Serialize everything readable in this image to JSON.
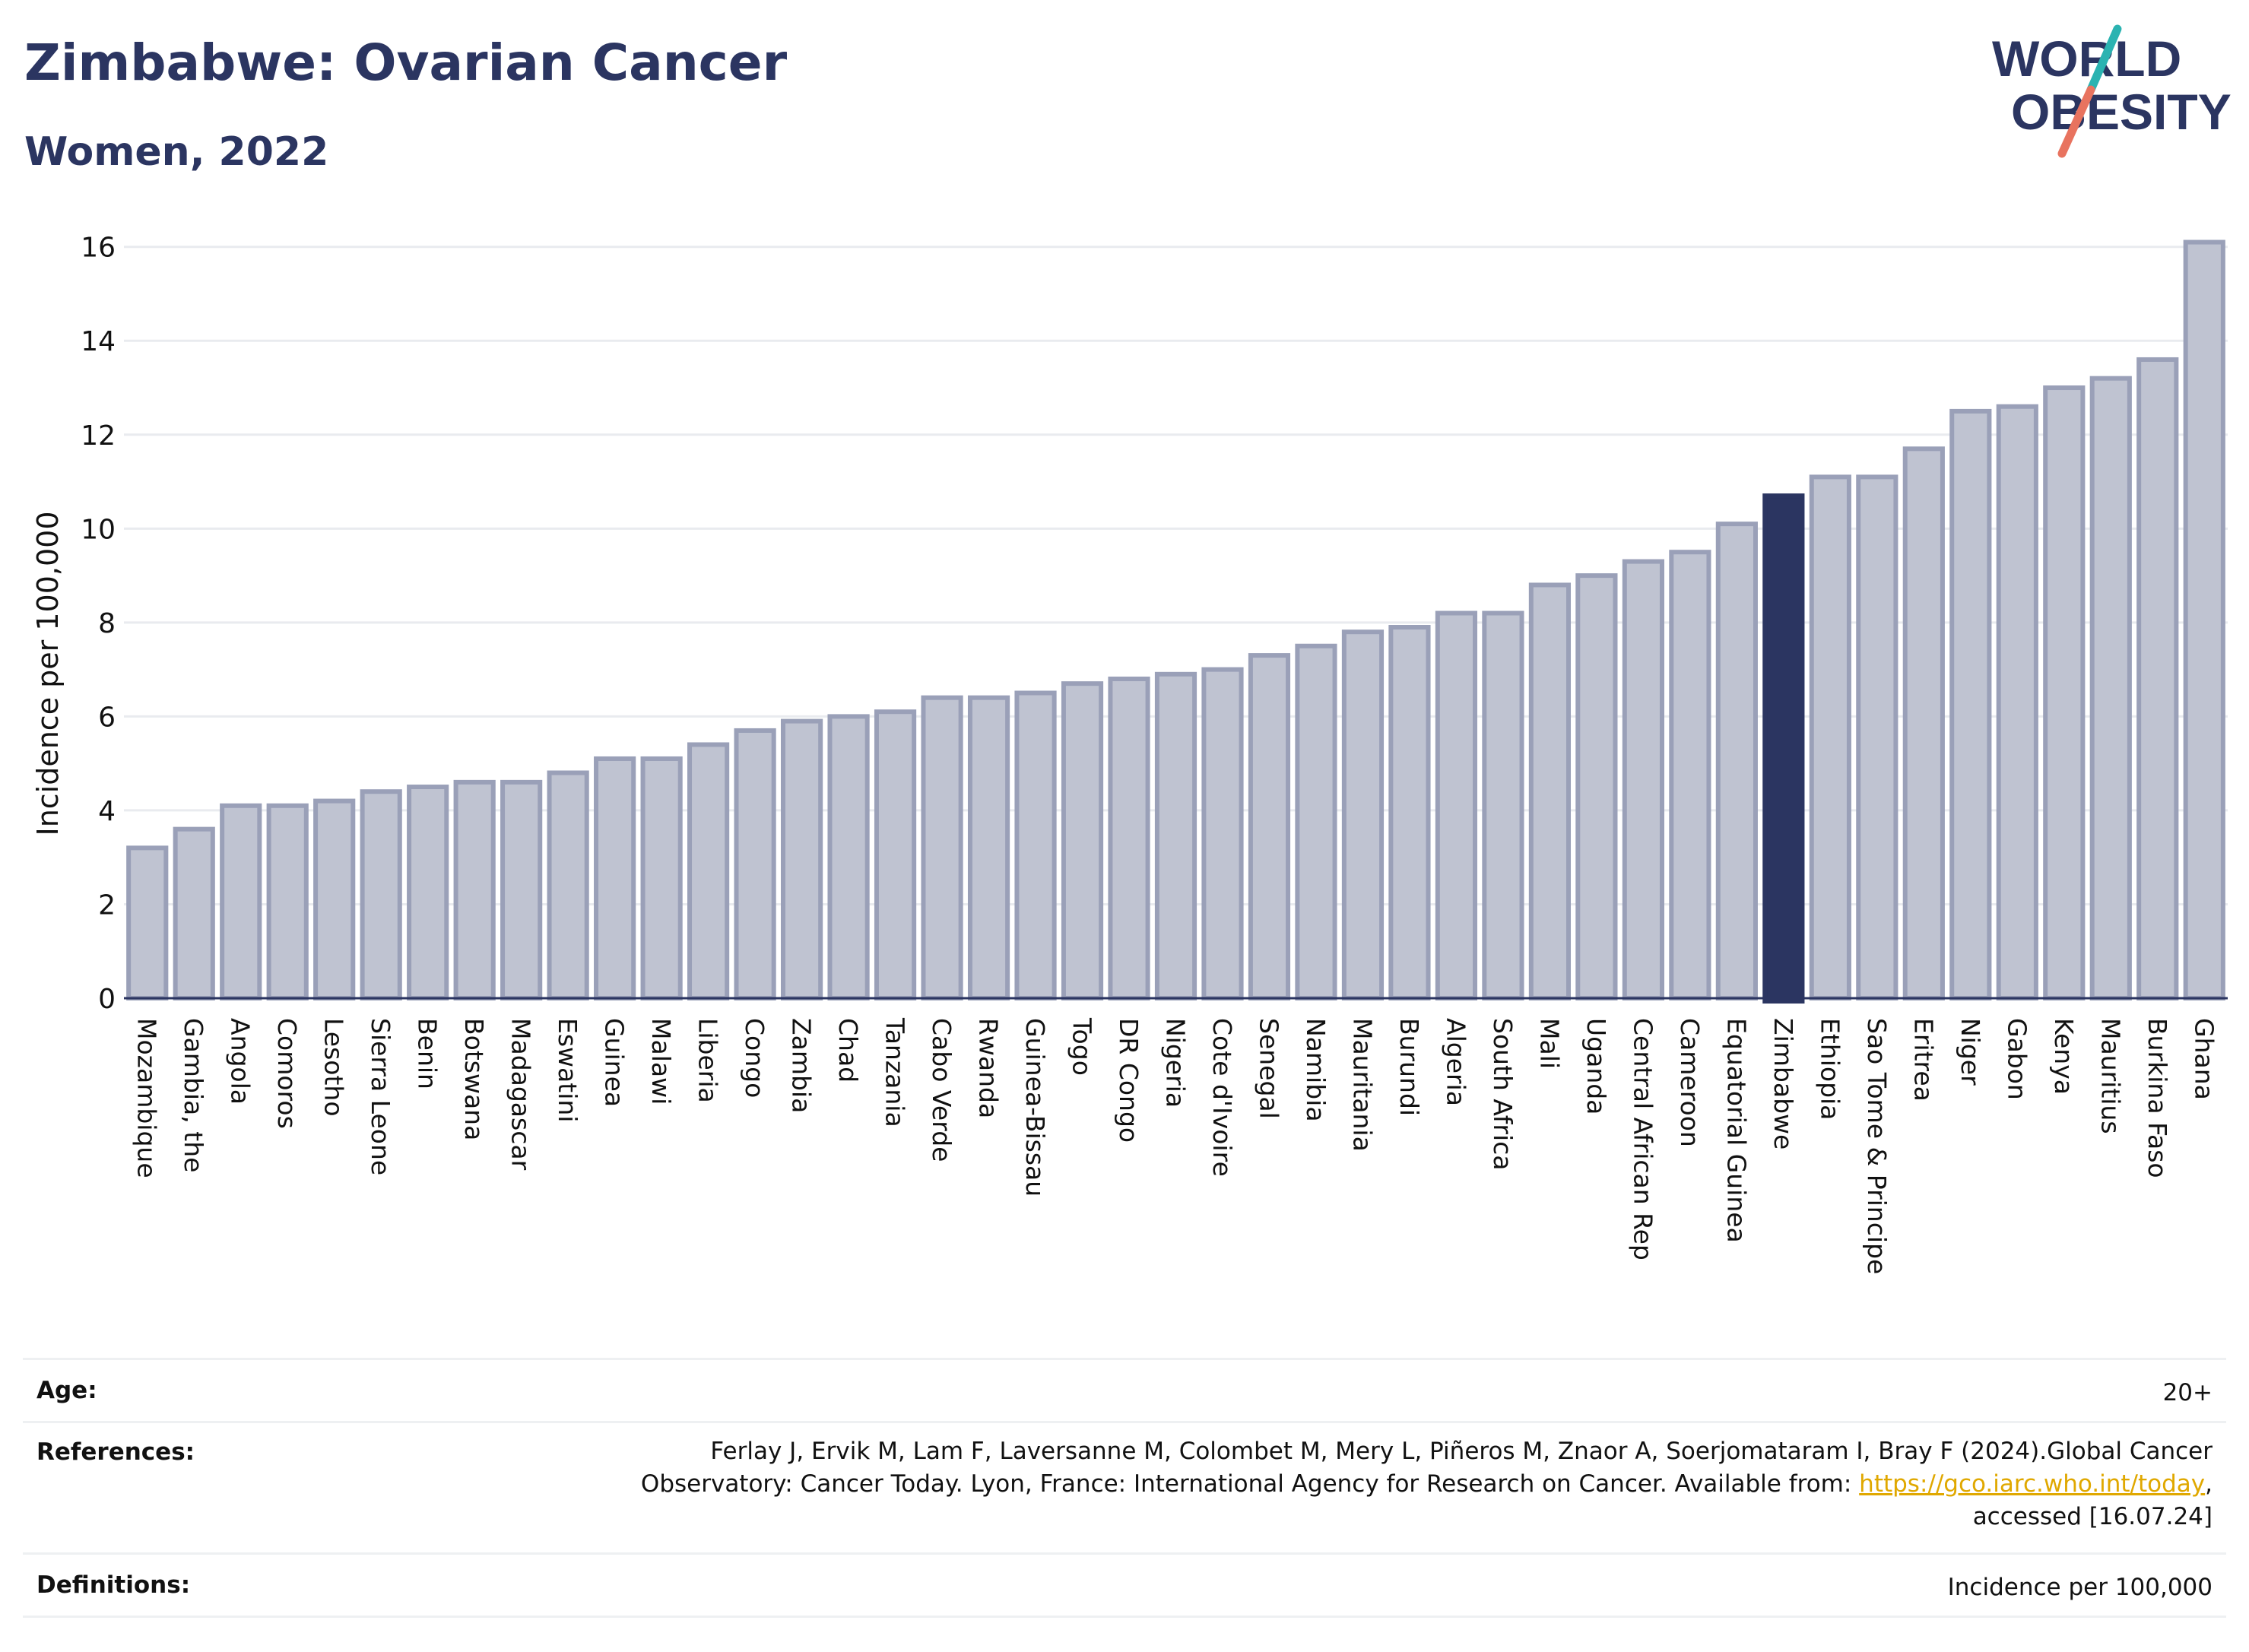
{
  "header": {
    "title": "Zimbabwe: Ovarian Cancer",
    "subtitle": "Women, 2022",
    "logo_line1": "WORLD",
    "logo_line2": "OBESITY"
  },
  "colors": {
    "title": "#2b3561",
    "highlight": "#2b3561",
    "bar": "#bfc3d1",
    "bar_edge": "#9aa0b8",
    "logo_teal": "#2bb3b1",
    "logo_coral": "#e8735f",
    "link": "#e0a800"
  },
  "chart_data": {
    "type": "bar",
    "ylabel": "Incidence per 100,000",
    "xlabel": "",
    "ylim": [
      0,
      16.4
    ],
    "yticks": [
      0,
      2,
      4,
      6,
      8,
      10,
      12,
      14,
      16
    ],
    "grid": true,
    "highlight": "Zimbabwe",
    "categories": [
      "Mozambique",
      "Gambia, the",
      "Angola",
      "Comoros",
      "Lesotho",
      "Sierra Leone",
      "Benin",
      "Botswana",
      "Madagascar",
      "Eswatini",
      "Guinea",
      "Malawi",
      "Liberia",
      "Congo",
      "Zambia",
      "Chad",
      "Tanzania",
      "Cabo Verde",
      "Rwanda",
      "Guinea-Bissau",
      "Togo",
      "DR Congo",
      "Nigeria",
      "Cote d'Ivoire",
      "Senegal",
      "Namibia",
      "Mauritania",
      "Burundi",
      "Algeria",
      "South Africa",
      "Mali",
      "Uganda",
      "Central African Rep",
      "Cameroon",
      "Equatorial Guinea",
      "Zimbabwe",
      "Ethiopia",
      "Sao Tome & Principe",
      "Eritrea",
      "Niger",
      "Gabon",
      "Kenya",
      "Mauritius",
      "Burkina Faso",
      "Ghana"
    ],
    "values": [
      3.2,
      3.6,
      4.1,
      4.1,
      4.2,
      4.4,
      4.5,
      4.6,
      4.6,
      4.8,
      5.1,
      5.1,
      5.4,
      5.7,
      5.9,
      6.0,
      6.1,
      6.4,
      6.4,
      6.5,
      6.7,
      6.8,
      6.9,
      7.0,
      7.3,
      7.5,
      7.8,
      7.9,
      8.2,
      8.2,
      8.8,
      9.0,
      9.3,
      9.5,
      10.1,
      10.7,
      11.1,
      11.1,
      11.7,
      12.5,
      12.6,
      13.0,
      13.2,
      13.6,
      16.1
    ]
  },
  "footer": {
    "age_label": "Age:",
    "age_value": "20+",
    "references_label": "References:",
    "references_line1": "Ferlay J, Ervik M, Lam F, Laversanne M, Colombet M, Mery L, Piñeros M, Znaor A, Soerjomataram I, Bray F (2024).Global Cancer",
    "references_line2": "Observatory: Cancer Today. Lyon, France: International Agency for Research on Cancer. Available from: ",
    "references_link": "https://gco.iarc.who.int/today",
    "references_line2_end": ",",
    "references_line3": "accessed [16.07.24]",
    "definitions_label": "Definitions:",
    "definitions_value": "Incidence per 100,000"
  }
}
